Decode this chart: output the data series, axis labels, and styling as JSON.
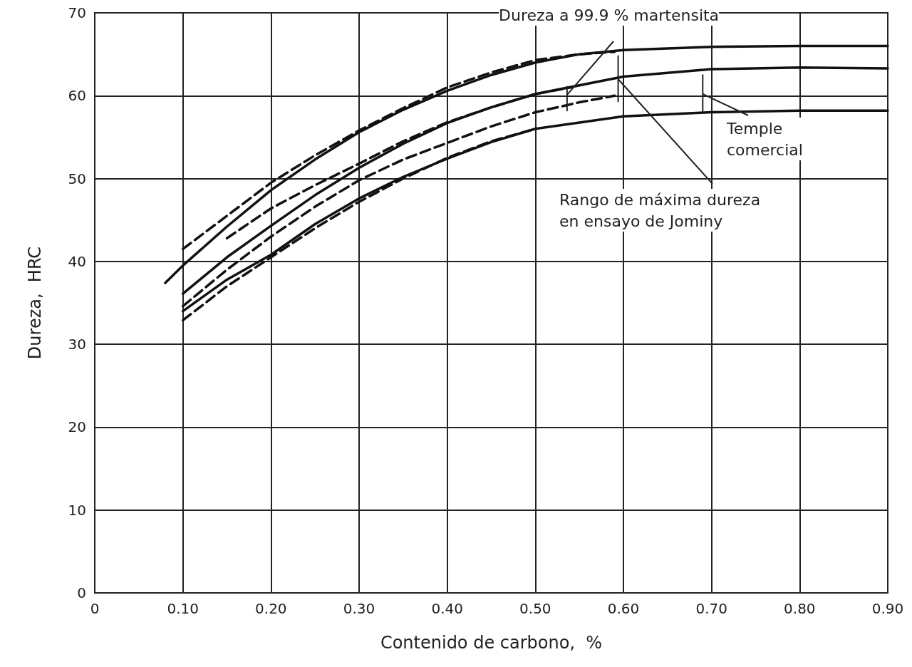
{
  "chart_data": {
    "type": "line",
    "xlabel": "Contenido de carbono,  %",
    "ylabel": "Dureza,  HRC",
    "xlim": [
      0,
      0.9
    ],
    "ylim": [
      0,
      70
    ],
    "xticks": [
      0,
      {
        "value": 0.1,
        "label": "0.10"
      },
      {
        "value": 0.2,
        "label": "0.20"
      },
      {
        "value": 0.3,
        "label": "0.30"
      },
      {
        "value": 0.4,
        "label": "0.40"
      },
      {
        "value": 0.5,
        "label": "0.50"
      },
      {
        "value": 0.6,
        "label": "0.60"
      },
      {
        "value": 0.7,
        "label": "0.70"
      },
      {
        "value": 0.8,
        "label": "0.80"
      },
      {
        "value": 0.9,
        "label": "0.90"
      }
    ],
    "yticks": [
      0,
      10,
      20,
      30,
      40,
      50,
      60,
      70
    ],
    "grid": true,
    "marker": "none",
    "series": [
      {
        "color": "#111111",
        "line_style": "solid",
        "x": [
          0.08,
          0.1,
          0.15,
          0.2,
          0.25,
          0.3,
          0.35,
          0.4,
          0.45,
          0.5,
          0.55,
          0.6,
          0.7,
          0.8,
          0.9
        ],
        "values": [
          37.4,
          39.5,
          44.2,
          48.6,
          52.3,
          55.6,
          58.3,
          60.6,
          62.5,
          64,
          65,
          65.5,
          65.9,
          66,
          66
        ]
      },
      {
        "color": "#111111",
        "line_style": "dashed",
        "x": [
          0.1,
          0.15,
          0.2,
          0.25,
          0.3,
          0.35,
          0.4,
          0.45,
          0.5,
          0.55,
          0.59
        ],
        "values": [
          41.5,
          45.5,
          49.5,
          52.8,
          55.8,
          58.5,
          61,
          62.8,
          64.3,
          65,
          65.3
        ]
      },
      {
        "color": "#111111",
        "line_style": "dashed",
        "x": [
          0.15,
          0.2,
          0.25,
          0.3,
          0.35,
          0.4,
          0.45,
          0.5,
          0.54
        ],
        "values": [
          42.8,
          46.4,
          49.2,
          51.8,
          54.5,
          56.8,
          58.6,
          60.2,
          61
        ]
      },
      {
        "color": "#111111",
        "line_style": "solid",
        "x": [
          0.1,
          0.15,
          0.2,
          0.25,
          0.3,
          0.35,
          0.4,
          0.45,
          0.5,
          0.6,
          0.7,
          0.8,
          0.9
        ],
        "values": [
          36.1,
          40.5,
          44.3,
          48,
          51.3,
          54.2,
          56.7,
          58.6,
          60.2,
          62.3,
          63.2,
          63.4,
          63.3
        ]
      },
      {
        "color": "#111111",
        "line_style": "dashed",
        "x": [
          0.1,
          0.15,
          0.2,
          0.25,
          0.3,
          0.35,
          0.4,
          0.45,
          0.5,
          0.55,
          0.59
        ],
        "values": [
          34.6,
          39,
          43,
          46.6,
          49.8,
          52.3,
          54.3,
          56.3,
          58,
          59.2,
          60
        ]
      },
      {
        "color": "#111111",
        "line_style": "solid",
        "x": [
          0.1,
          0.15,
          0.2,
          0.25,
          0.3,
          0.35,
          0.4,
          0.45,
          0.5,
          0.6,
          0.7,
          0.8,
          0.9
        ],
        "values": [
          34,
          37.8,
          40.8,
          44.5,
          47.6,
          50.2,
          52.4,
          54.4,
          56,
          57.5,
          58,
          58.2,
          58.2
        ]
      },
      {
        "color": "#111111",
        "line_style": "dashed",
        "x": [
          0.1,
          0.15,
          0.2,
          0.25,
          0.3,
          0.35,
          0.4,
          0.45,
          0.5
        ],
        "values": [
          32.9,
          37,
          40.5,
          44,
          47.2,
          50,
          52.5,
          54.5,
          56
        ]
      },
      {
        "color": "#222222",
        "line_style": "solid",
        "x": [
          0.536,
          0.536
        ],
        "values": [
          58.2,
          61.1
        ]
      },
      {
        "color": "#222222",
        "line_style": "solid",
        "x": [
          0.594,
          0.594
        ],
        "values": [
          59.3,
          64.8
        ]
      },
      {
        "color": "#222222",
        "line_style": "solid",
        "x": [
          0.69,
          0.69
        ],
        "values": [
          58.1,
          62.5
        ]
      }
    ],
    "annotations": [
      {
        "text": "Dureza a 99.9 % martensita",
        "x": 0.536,
        "y": 60.1
      },
      {
        "text": "Temple\ncomercial",
        "x": 0.69,
        "y": 60.2
      },
      {
        "text": "Rango de máxima dureza\nen ensayo de Jominy",
        "x": 0.594,
        "y": 62
      }
    ]
  }
}
